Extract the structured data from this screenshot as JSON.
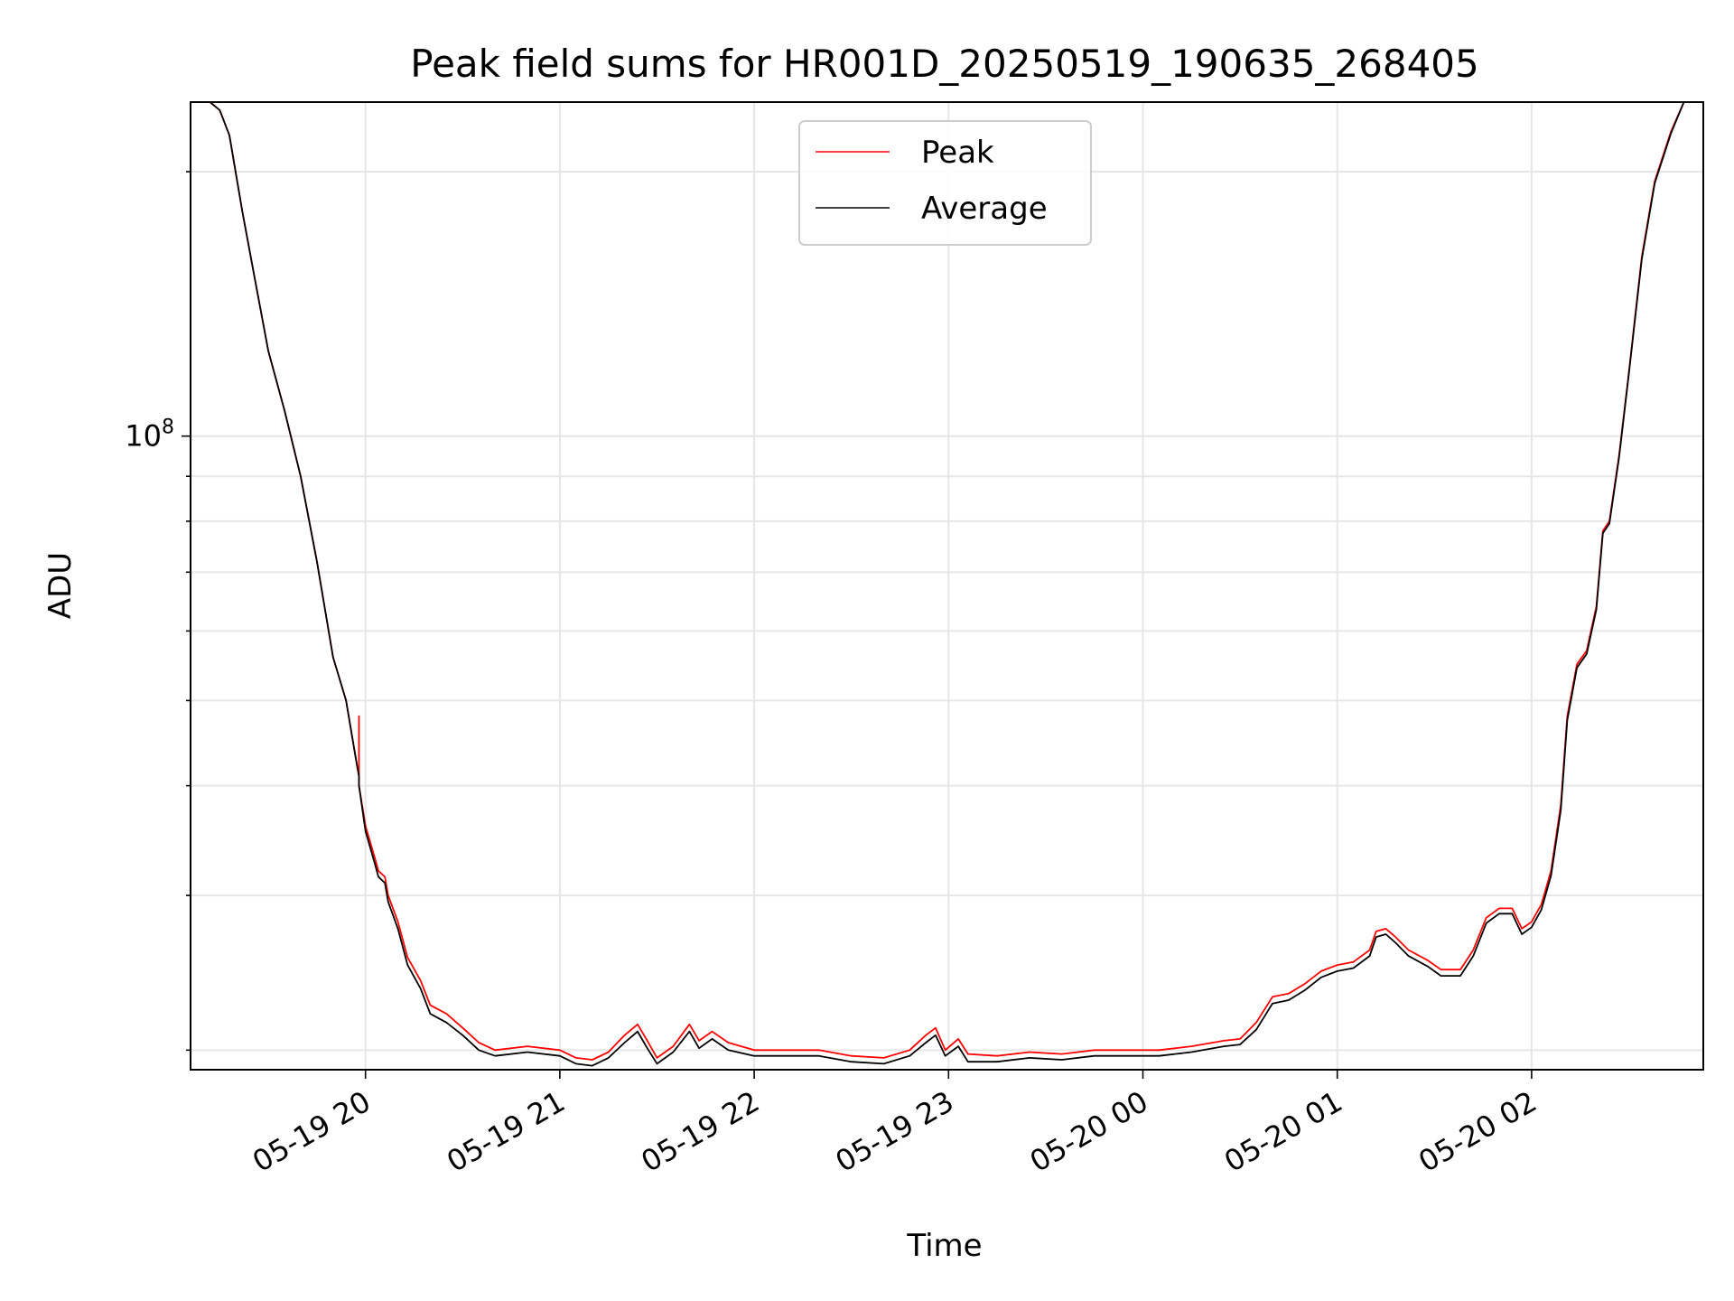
{
  "chart_data": {
    "type": "line",
    "title": "Peak field sums for HR001D_20250519_190635_268405",
    "xlabel": "Time",
    "ylabel": "ADU",
    "y_scale": "log",
    "grid": true,
    "legend_position": "upper center",
    "x_range": [
      "2025-05-19 19:06",
      "2025-05-20 02:53"
    ],
    "ylim": [
      19000000,
      240000000
    ],
    "x_ticks": [
      {
        "x": "2025-05-19 20:00",
        "label": "05-19 20"
      },
      {
        "x": "2025-05-19 21:00",
        "label": "05-19 21"
      },
      {
        "x": "2025-05-19 22:00",
        "label": "05-19 22"
      },
      {
        "x": "2025-05-19 23:00",
        "label": "05-19 23"
      },
      {
        "x": "2025-05-20 00:00",
        "label": "05-20 00"
      },
      {
        "x": "2025-05-20 01:00",
        "label": "05-20 01"
      },
      {
        "x": "2025-05-20 02:00",
        "label": "05-20 02"
      }
    ],
    "y_major_ticks": [
      {
        "value": 100000000,
        "label_base": "10",
        "label_exp": "8"
      }
    ],
    "y_minor_ticks": [
      20000000,
      30000000,
      40000000,
      50000000,
      60000000,
      70000000,
      80000000,
      90000000,
      200000000
    ],
    "series": [
      {
        "name": "Peak",
        "color": "#ff0000",
        "points": [
          [
            "2025-05-19 19:06",
            240000000
          ],
          [
            "2025-05-19 19:12",
            240000000
          ],
          [
            "2025-05-19 19:15",
            235000000
          ],
          [
            "2025-05-19 19:18",
            220000000
          ],
          [
            "2025-05-19 19:22",
            180000000
          ],
          [
            "2025-05-19 19:26",
            150000000
          ],
          [
            "2025-05-19 19:30",
            125000000
          ],
          [
            "2025-05-19 19:35",
            107000000
          ],
          [
            "2025-05-19 19:40",
            90000000
          ],
          [
            "2025-05-19 19:45",
            72000000
          ],
          [
            "2025-05-19 19:50",
            56000000
          ],
          [
            "2025-05-19 19:54",
            50000000
          ],
          [
            "2025-05-19 19:57",
            43000000
          ],
          [
            "2025-05-19 19:58",
            41000000
          ],
          [
            "2025-05-19 19:58",
            48000000
          ],
          [
            "2025-05-19 19:58",
            40000000
          ],
          [
            "2025-05-19 20:00",
            36000000
          ],
          [
            "2025-05-19 20:03",
            33000000
          ],
          [
            "2025-05-19 20:04",
            32000000
          ],
          [
            "2025-05-19 20:06",
            31500000
          ],
          [
            "2025-05-19 20:07",
            30000000
          ],
          [
            "2025-05-19 20:10",
            28000000
          ],
          [
            "2025-05-19 20:13",
            25500000
          ],
          [
            "2025-05-19 20:17",
            24000000
          ],
          [
            "2025-05-19 20:20",
            22500000
          ],
          [
            "2025-05-19 20:25",
            22000000
          ],
          [
            "2025-05-19 20:30",
            21200000
          ],
          [
            "2025-05-19 20:35",
            20400000
          ],
          [
            "2025-05-19 20:40",
            20000000
          ],
          [
            "2025-05-19 20:50",
            20200000
          ],
          [
            "2025-05-19 21:00",
            20000000
          ],
          [
            "2025-05-19 21:05",
            19600000
          ],
          [
            "2025-05-19 21:10",
            19500000
          ],
          [
            "2025-05-19 21:15",
            19900000
          ],
          [
            "2025-05-19 21:20",
            20800000
          ],
          [
            "2025-05-19 21:24",
            21400000
          ],
          [
            "2025-05-19 21:27",
            20500000
          ],
          [
            "2025-05-19 21:30",
            19600000
          ],
          [
            "2025-05-19 21:35",
            20200000
          ],
          [
            "2025-05-19 21:40",
            21400000
          ],
          [
            "2025-05-19 21:43",
            20500000
          ],
          [
            "2025-05-19 21:47",
            21000000
          ],
          [
            "2025-05-19 21:52",
            20400000
          ],
          [
            "2025-05-19 22:00",
            20000000
          ],
          [
            "2025-05-19 22:10",
            20000000
          ],
          [
            "2025-05-19 22:20",
            20000000
          ],
          [
            "2025-05-19 22:30",
            19700000
          ],
          [
            "2025-05-19 22:40",
            19600000
          ],
          [
            "2025-05-19 22:48",
            20000000
          ],
          [
            "2025-05-19 22:53",
            20800000
          ],
          [
            "2025-05-19 22:56",
            21200000
          ],
          [
            "2025-05-19 22:59",
            20000000
          ],
          [
            "2025-05-19 23:03",
            20600000
          ],
          [
            "2025-05-19 23:06",
            19800000
          ],
          [
            "2025-05-19 23:15",
            19700000
          ],
          [
            "2025-05-19 23:25",
            19900000
          ],
          [
            "2025-05-19 23:35",
            19800000
          ],
          [
            "2025-05-19 23:45",
            20000000
          ],
          [
            "2025-05-19 23:55",
            20000000
          ],
          [
            "2025-05-20 00:05",
            20000000
          ],
          [
            "2025-05-20 00:15",
            20200000
          ],
          [
            "2025-05-20 00:25",
            20500000
          ],
          [
            "2025-05-20 00:30",
            20600000
          ],
          [
            "2025-05-20 00:35",
            21500000
          ],
          [
            "2025-05-20 00:40",
            23000000
          ],
          [
            "2025-05-20 00:45",
            23200000
          ],
          [
            "2025-05-20 00:50",
            23800000
          ],
          [
            "2025-05-20 00:55",
            24600000
          ],
          [
            "2025-05-20 01:00",
            25000000
          ],
          [
            "2025-05-20 01:05",
            25200000
          ],
          [
            "2025-05-20 01:10",
            26000000
          ],
          [
            "2025-05-20 01:12",
            27300000
          ],
          [
            "2025-05-20 01:15",
            27500000
          ],
          [
            "2025-05-20 01:18",
            26900000
          ],
          [
            "2025-05-20 01:22",
            26000000
          ],
          [
            "2025-05-20 01:28",
            25300000
          ],
          [
            "2025-05-20 01:32",
            24700000
          ],
          [
            "2025-05-20 01:38",
            24700000
          ],
          [
            "2025-05-20 01:42",
            26000000
          ],
          [
            "2025-05-20 01:46",
            28300000
          ],
          [
            "2025-05-20 01:50",
            29000000
          ],
          [
            "2025-05-20 01:54",
            29000000
          ],
          [
            "2025-05-20 01:57",
            27500000
          ],
          [
            "2025-05-20 02:00",
            28000000
          ],
          [
            "2025-05-20 02:03",
            29300000
          ],
          [
            "2025-05-20 02:06",
            32000000
          ],
          [
            "2025-05-20 02:09",
            38000000
          ],
          [
            "2025-05-20 02:11",
            48000000
          ],
          [
            "2025-05-20 02:14",
            55000000
          ],
          [
            "2025-05-20 02:17",
            57000000
          ],
          [
            "2025-05-20 02:20",
            64000000
          ],
          [
            "2025-05-20 02:22",
            78000000
          ],
          [
            "2025-05-20 02:24",
            80000000
          ],
          [
            "2025-05-20 02:27",
            95000000
          ],
          [
            "2025-05-20 02:30",
            118000000
          ],
          [
            "2025-05-20 02:34",
            160000000
          ],
          [
            "2025-05-20 02:38",
            195000000
          ],
          [
            "2025-05-20 02:43",
            222000000
          ],
          [
            "2025-05-20 02:47",
            240000000
          ]
        ]
      },
      {
        "name": "Average",
        "color": "#000000",
        "points": [
          [
            "2025-05-19 19:06",
            240000000
          ],
          [
            "2025-05-19 19:12",
            240000000
          ],
          [
            "2025-05-19 19:15",
            235000000
          ],
          [
            "2025-05-19 19:18",
            220000000
          ],
          [
            "2025-05-19 19:22",
            180000000
          ],
          [
            "2025-05-19 19:26",
            150000000
          ],
          [
            "2025-05-19 19:30",
            125000000
          ],
          [
            "2025-05-19 19:35",
            107000000
          ],
          [
            "2025-05-19 19:40",
            90000000
          ],
          [
            "2025-05-19 19:45",
            72000000
          ],
          [
            "2025-05-19 19:50",
            56000000
          ],
          [
            "2025-05-19 19:54",
            50000000
          ],
          [
            "2025-05-19 19:57",
            43000000
          ],
          [
            "2025-05-19 19:58",
            41000000
          ],
          [
            "2025-05-19 19:58",
            40000000
          ],
          [
            "2025-05-19 20:00",
            35500000
          ],
          [
            "2025-05-19 20:03",
            32500000
          ],
          [
            "2025-05-19 20:04",
            31500000
          ],
          [
            "2025-05-19 20:06",
            31000000
          ],
          [
            "2025-05-19 20:07",
            29500000
          ],
          [
            "2025-05-19 20:10",
            27500000
          ],
          [
            "2025-05-19 20:13",
            25000000
          ],
          [
            "2025-05-19 20:17",
            23500000
          ],
          [
            "2025-05-19 20:20",
            22000000
          ],
          [
            "2025-05-19 20:25",
            21500000
          ],
          [
            "2025-05-19 20:30",
            20800000
          ],
          [
            "2025-05-19 20:35",
            20000000
          ],
          [
            "2025-05-19 20:40",
            19700000
          ],
          [
            "2025-05-19 20:50",
            19900000
          ],
          [
            "2025-05-19 21:00",
            19700000
          ],
          [
            "2025-05-19 21:05",
            19300000
          ],
          [
            "2025-05-19 21:10",
            19200000
          ],
          [
            "2025-05-19 21:15",
            19600000
          ],
          [
            "2025-05-19 21:20",
            20400000
          ],
          [
            "2025-05-19 21:24",
            21000000
          ],
          [
            "2025-05-19 21:27",
            20100000
          ],
          [
            "2025-05-19 21:30",
            19300000
          ],
          [
            "2025-05-19 21:35",
            19900000
          ],
          [
            "2025-05-19 21:40",
            21000000
          ],
          [
            "2025-05-19 21:43",
            20100000
          ],
          [
            "2025-05-19 21:47",
            20600000
          ],
          [
            "2025-05-19 21:52",
            20000000
          ],
          [
            "2025-05-19 22:00",
            19700000
          ],
          [
            "2025-05-19 22:10",
            19700000
          ],
          [
            "2025-05-19 22:20",
            19700000
          ],
          [
            "2025-05-19 22:30",
            19400000
          ],
          [
            "2025-05-19 22:40",
            19300000
          ],
          [
            "2025-05-19 22:48",
            19700000
          ],
          [
            "2025-05-19 22:53",
            20400000
          ],
          [
            "2025-05-19 22:56",
            20800000
          ],
          [
            "2025-05-19 22:59",
            19700000
          ],
          [
            "2025-05-19 23:03",
            20200000
          ],
          [
            "2025-05-19 23:06",
            19400000
          ],
          [
            "2025-05-19 23:15",
            19400000
          ],
          [
            "2025-05-19 23:25",
            19600000
          ],
          [
            "2025-05-19 23:35",
            19500000
          ],
          [
            "2025-05-19 23:45",
            19700000
          ],
          [
            "2025-05-19 23:55",
            19700000
          ],
          [
            "2025-05-20 00:05",
            19700000
          ],
          [
            "2025-05-20 00:15",
            19900000
          ],
          [
            "2025-05-20 00:25",
            20200000
          ],
          [
            "2025-05-20 00:30",
            20300000
          ],
          [
            "2025-05-20 00:35",
            21100000
          ],
          [
            "2025-05-20 00:40",
            22600000
          ],
          [
            "2025-05-20 00:45",
            22800000
          ],
          [
            "2025-05-20 00:50",
            23400000
          ],
          [
            "2025-05-20 00:55",
            24200000
          ],
          [
            "2025-05-20 01:00",
            24600000
          ],
          [
            "2025-05-20 01:05",
            24800000
          ],
          [
            "2025-05-20 01:10",
            25600000
          ],
          [
            "2025-05-20 01:12",
            26900000
          ],
          [
            "2025-05-20 01:15",
            27100000
          ],
          [
            "2025-05-20 01:18",
            26500000
          ],
          [
            "2025-05-20 01:22",
            25600000
          ],
          [
            "2025-05-20 01:28",
            24900000
          ],
          [
            "2025-05-20 01:32",
            24300000
          ],
          [
            "2025-05-20 01:38",
            24300000
          ],
          [
            "2025-05-20 01:42",
            25600000
          ],
          [
            "2025-05-20 01:46",
            27900000
          ],
          [
            "2025-05-20 01:50",
            28600000
          ],
          [
            "2025-05-20 01:54",
            28600000
          ],
          [
            "2025-05-20 01:57",
            27100000
          ],
          [
            "2025-05-20 02:00",
            27600000
          ],
          [
            "2025-05-20 02:03",
            28900000
          ],
          [
            "2025-05-20 02:06",
            31600000
          ],
          [
            "2025-05-20 02:09",
            37500000
          ],
          [
            "2025-05-20 02:11",
            47500000
          ],
          [
            "2025-05-20 02:14",
            54500000
          ],
          [
            "2025-05-20 02:17",
            56500000
          ],
          [
            "2025-05-20 02:20",
            63500000
          ],
          [
            "2025-05-20 02:22",
            77500000
          ],
          [
            "2025-05-20 02:24",
            79500000
          ],
          [
            "2025-05-20 02:27",
            94500000
          ],
          [
            "2025-05-20 02:30",
            117500000
          ],
          [
            "2025-05-20 02:34",
            159000000
          ],
          [
            "2025-05-20 02:38",
            194000000
          ],
          [
            "2025-05-20 02:43",
            221000000
          ],
          [
            "2025-05-20 02:47",
            240000000
          ]
        ]
      }
    ]
  }
}
